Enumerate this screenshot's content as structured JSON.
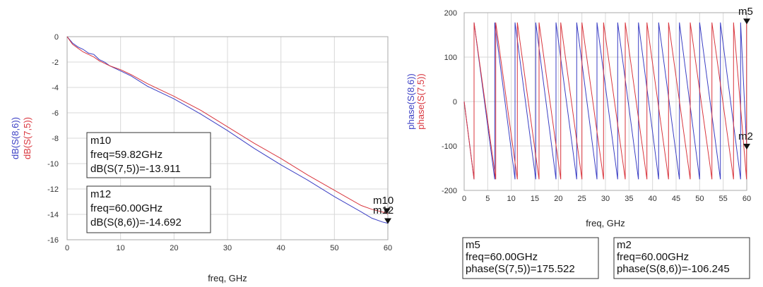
{
  "chart_data": [
    {
      "type": "line",
      "title": "",
      "xlabel": "freq, GHz",
      "ylabel_series": [
        "dB(S(8,6))",
        "dB(S(7,5))"
      ],
      "xlim": [
        0,
        60
      ],
      "ylim": [
        -16,
        0
      ],
      "x_ticks": [
        0,
        10,
        20,
        30,
        40,
        50,
        60
      ],
      "y_ticks": [
        0,
        -2,
        -4,
        -6,
        -8,
        -10,
        -12,
        -14,
        -16
      ],
      "grid": true,
      "series": [
        {
          "name": "dB(S(8,6))",
          "color": "#3b3fc4",
          "x": [
            0,
            1,
            2,
            3,
            4,
            5,
            6,
            7,
            8,
            10,
            12,
            15,
            20,
            25,
            30,
            35,
            40,
            45,
            50,
            55,
            57,
            59,
            60
          ],
          "y": [
            0,
            -0.5,
            -0.8,
            -1.0,
            -1.3,
            -1.4,
            -1.8,
            -2.0,
            -2.3,
            -2.7,
            -3.1,
            -3.9,
            -4.9,
            -6.1,
            -7.4,
            -8.8,
            -10.1,
            -11.3,
            -12.6,
            -13.8,
            -14.3,
            -14.6,
            -14.7
          ]
        },
        {
          "name": "dB(S(7,5))",
          "color": "#d9363e",
          "x": [
            0,
            1,
            2,
            3,
            4,
            5,
            6,
            7,
            8,
            10,
            12,
            15,
            20,
            25,
            30,
            35,
            40,
            45,
            50,
            55,
            57,
            59.82,
            60
          ],
          "y": [
            0,
            -0.6,
            -0.9,
            -1.2,
            -1.4,
            -1.6,
            -1.9,
            -2.1,
            -2.3,
            -2.6,
            -3.0,
            -3.7,
            -4.7,
            -5.8,
            -7.1,
            -8.4,
            -9.6,
            -10.9,
            -12.1,
            -13.3,
            -13.6,
            -13.9,
            -14.0
          ]
        }
      ],
      "markers": [
        {
          "id": "m10",
          "x": 59.82,
          "y": -13.911,
          "lines": [
            "m10",
            "freq=59.82GHz",
            "dB(S(7,5))=-13.911"
          ]
        },
        {
          "id": "m12",
          "x": 60.0,
          "y": -14.692,
          "lines": [
            "m12",
            "freq=60.00GHz",
            "dB(S(8,6))=-14.692"
          ]
        }
      ]
    },
    {
      "type": "line",
      "title": "",
      "xlabel": "freq, GHz",
      "ylabel_series": [
        "phase(S(8,6))",
        "phase(S(7,5))"
      ],
      "xlim": [
        0,
        60
      ],
      "ylim": [
        -200,
        200
      ],
      "x_ticks": [
        0,
        5,
        10,
        15,
        20,
        25,
        30,
        35,
        40,
        45,
        50,
        55,
        60
      ],
      "y_ticks": [
        200,
        100,
        0,
        -100,
        -200
      ],
      "grid": true,
      "series": [
        {
          "name": "phase(S(8,6))",
          "color": "#3b3fc4",
          "wrap_frequencies_ghz": [
            2.1,
            6.5,
            10.8,
            15.2,
            19.5,
            23.9,
            28.2,
            32.6,
            37.0,
            41.3,
            45.7,
            50.0,
            54.4,
            58.7
          ],
          "start_phase": 0,
          "end_phase": -106.245
        },
        {
          "name": "phase(S(7,5))",
          "color": "#d9363e",
          "wrap_frequencies_ghz": [
            2.1,
            6.7,
            11.3,
            15.9,
            20.5,
            25.0,
            29.6,
            34.2,
            38.8,
            43.4,
            48.0,
            52.6,
            57.2,
            59.95
          ],
          "start_phase": 0,
          "end_phase": 175.522
        }
      ],
      "markers": [
        {
          "id": "m5",
          "x": 60.0,
          "y": 175.522,
          "lines": [
            "m5",
            "freq=60.00GHz",
            "phase(S(7,5))=175.522"
          ]
        },
        {
          "id": "m2",
          "x": 60.0,
          "y": -106.245,
          "lines": [
            "m2",
            "freq=60.00GHz",
            "phase(S(8,6))=-106.245"
          ]
        }
      ]
    }
  ]
}
